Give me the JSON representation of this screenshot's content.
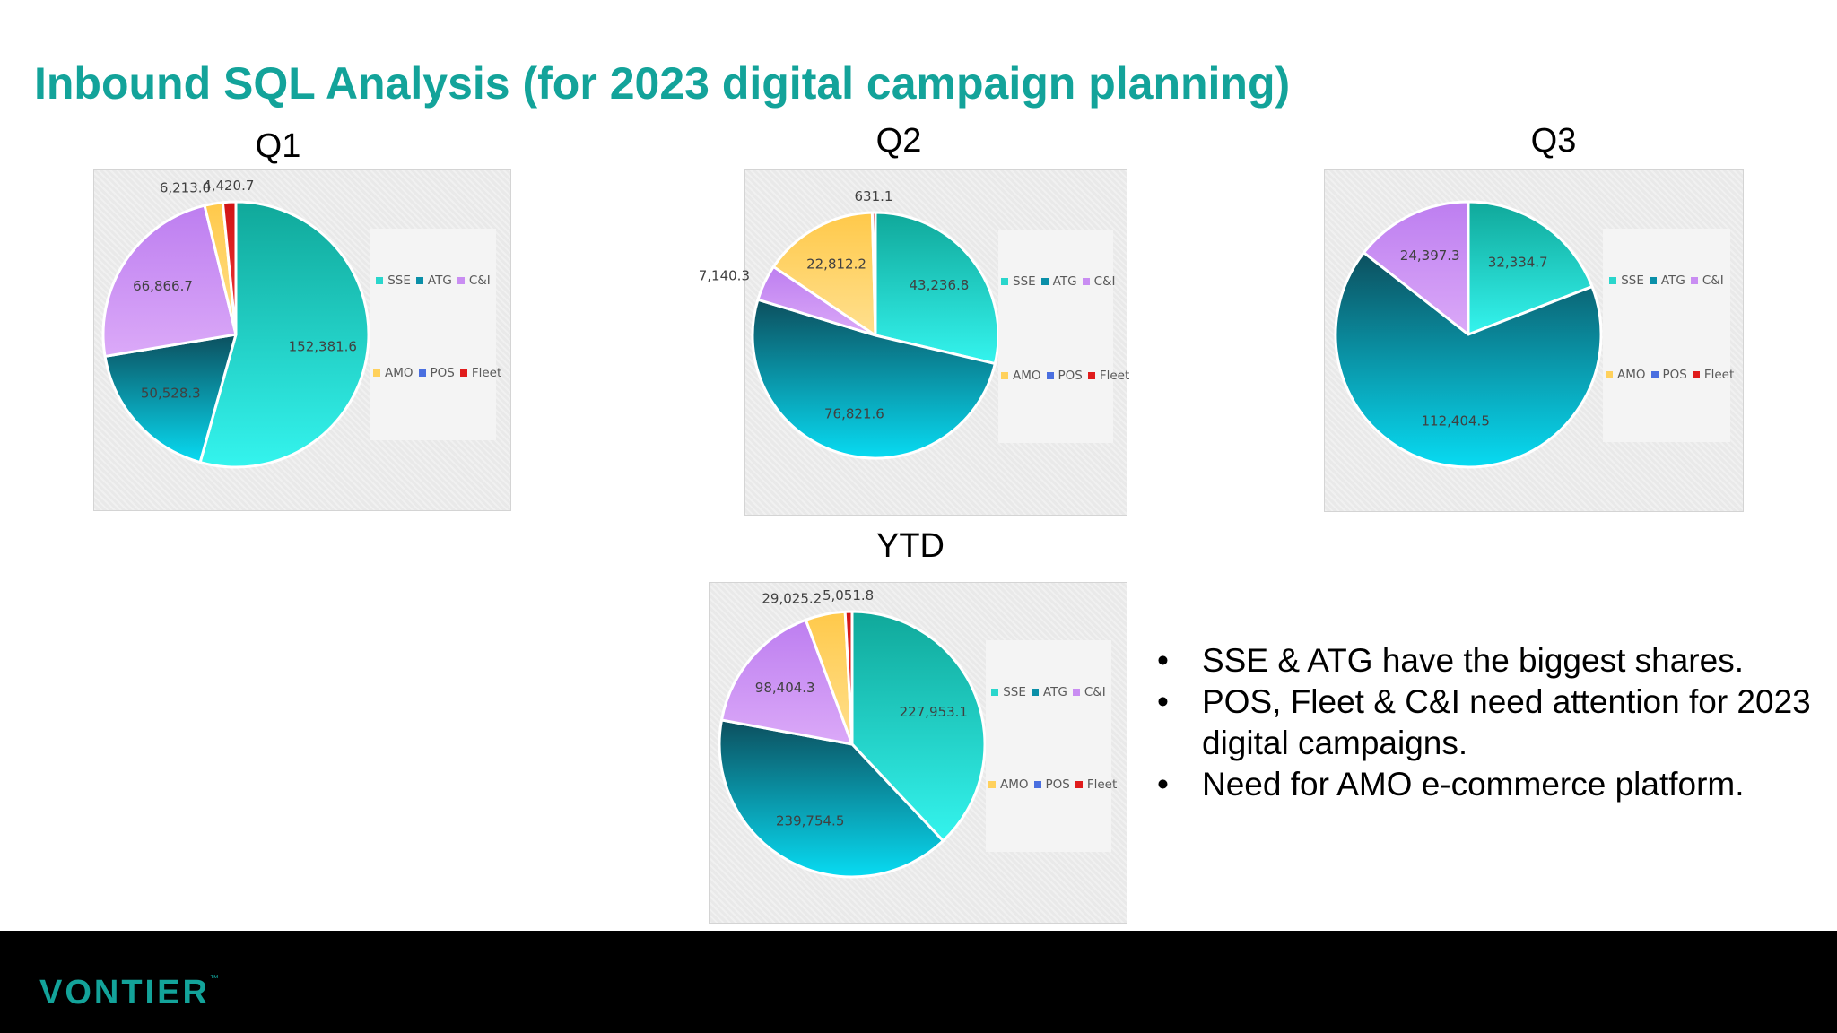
{
  "title": "Inbound SQL Analysis (for 2023 digital campaign planning)",
  "colors": {
    "SSE": "#2ad6cc",
    "ATG": "#0a8fa8",
    "C&I": "#c98df2",
    "AMO": "#ffd15c",
    "POS": "#4a6fe0",
    "Fleet": "#e01c1c"
  },
  "chart_data": [
    {
      "type": "pie",
      "title": "Q1",
      "categories": [
        "SSE",
        "ATG",
        "C&I",
        "AMO",
        "POS",
        "Fleet"
      ],
      "values": [
        152381.6,
        50528.3,
        66866.7,
        6213.0,
        0,
        4420.7
      ],
      "labels": [
        "152,381.6",
        "50,528.3",
        "66,866.7",
        "6,213.0",
        "",
        "4,420.7"
      ],
      "legend_position": "right"
    },
    {
      "type": "pie",
      "title": "Q2",
      "categories": [
        "SSE",
        "ATG",
        "C&I",
        "AMO",
        "POS",
        "Fleet"
      ],
      "values": [
        43236.8,
        76821.6,
        7140.3,
        22812.2,
        0,
        631.1
      ],
      "labels": [
        "43,236.8",
        "76,821.6",
        "7,140.3",
        "22,812.2",
        "",
        "631.1"
      ],
      "legend_position": "right"
    },
    {
      "type": "pie",
      "title": "Q3",
      "categories": [
        "SSE",
        "ATG",
        "C&I",
        "AMO",
        "POS",
        "Fleet"
      ],
      "values": [
        32334.7,
        112404.5,
        24397.3,
        0,
        0,
        0
      ],
      "labels": [
        "32,334.7",
        "112,404.5",
        "24,397.3",
        "",
        "",
        ""
      ],
      "legend_position": "right"
    },
    {
      "type": "pie",
      "title": "YTD",
      "categories": [
        "SSE",
        "ATG",
        "C&I",
        "AMO",
        "POS",
        "Fleet"
      ],
      "values": [
        227953.1,
        239754.5,
        98404.3,
        29025.2,
        0,
        5051.8
      ],
      "labels": [
        "227,953.1",
        "239,754.5",
        "98,404.3",
        "29,025.2",
        "",
        "5,051.8"
      ],
      "legend_position": "right"
    }
  ],
  "bullets": [
    "SSE & ATG have the biggest shares.",
    "POS, Fleet & C&I need attention for 2023 digital campaigns.",
    "Need for AMO e-commerce platform."
  ],
  "footer": {
    "logo_text": "VONTIER",
    "trademark": "™"
  }
}
